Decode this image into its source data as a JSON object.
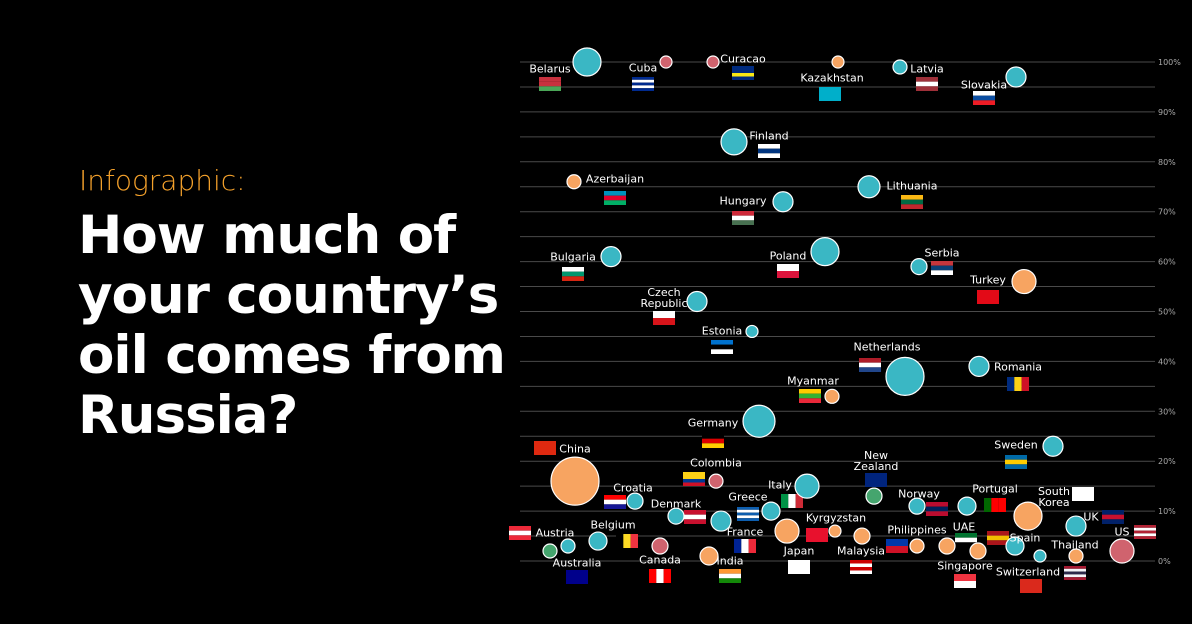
{
  "chart_data": {
    "type": "bubble",
    "kicker": "Infographic:",
    "title_lines": [
      "How much of",
      "your country’s",
      "oil comes from",
      "Russia?"
    ],
    "ylim": [
      0,
      100
    ],
    "yticks": [
      {
        "value": 0,
        "label": "0%"
      },
      {
        "value": 10,
        "label": "10%"
      },
      {
        "value": 20,
        "label": "20%"
      },
      {
        "value": 30,
        "label": "30%"
      },
      {
        "value": 40,
        "label": "40%"
      },
      {
        "value": 50,
        "label": "50%"
      },
      {
        "value": 60,
        "label": "60%"
      },
      {
        "value": 70,
        "label": "70%"
      },
      {
        "value": 80,
        "label": "80%"
      },
      {
        "value": 90,
        "label": "90%"
      },
      {
        "value": 100,
        "label": "100%"
      }
    ],
    "minor_yticks": [
      5,
      15,
      25,
      35,
      45,
      55,
      65,
      75,
      85,
      95
    ],
    "grid": true,
    "points": [
      {
        "name": "Belarus",
        "value": 100,
        "size": 14,
        "color": "#3ab7c4"
      },
      {
        "name": "Cuba",
        "value": 100,
        "size": 6,
        "color": "#d0636e"
      },
      {
        "name": "Curacao",
        "value": 100,
        "size": 6,
        "color": "#d0636e"
      },
      {
        "name": "Kazakhstan",
        "value": 100,
        "size": 6,
        "color": "#f7a461"
      },
      {
        "name": "Latvia",
        "value": 99,
        "size": 7,
        "color": "#3ab7c4"
      },
      {
        "name": "Slovakia",
        "value": 97,
        "size": 10,
        "color": "#3ab7c4"
      },
      {
        "name": "Finland",
        "value": 84,
        "size": 13,
        "color": "#3ab7c4"
      },
      {
        "name": "Azerbaijan",
        "value": 76,
        "size": 7,
        "color": "#f7a461"
      },
      {
        "name": "Lithuania",
        "value": 75,
        "size": 11,
        "color": "#3ab7c4"
      },
      {
        "name": "Hungary",
        "value": 72,
        "size": 10,
        "color": "#3ab7c4"
      },
      {
        "name": "Bulgaria",
        "value": 61,
        "size": 10,
        "color": "#3ab7c4"
      },
      {
        "name": "Poland",
        "value": 62,
        "size": 14,
        "color": "#3ab7c4"
      },
      {
        "name": "Serbia",
        "value": 59,
        "size": 8,
        "color": "#3ab7c4"
      },
      {
        "name": "Turkey",
        "value": 56,
        "size": 12,
        "color": "#f7a461"
      },
      {
        "name": "Czech Republic",
        "value": 52,
        "size": 10,
        "color": "#3ab7c4"
      },
      {
        "name": "Estonia",
        "value": 46,
        "size": 6,
        "color": "#3ab7c4"
      },
      {
        "name": "Netherlands",
        "value": 37,
        "size": 19,
        "color": "#3ab7c4"
      },
      {
        "name": "Romania",
        "value": 39,
        "size": 10,
        "color": "#3ab7c4"
      },
      {
        "name": "Myanmar",
        "value": 33,
        "size": 7,
        "color": "#f7a461"
      },
      {
        "name": "Germany",
        "value": 28,
        "size": 16,
        "color": "#3ab7c4"
      },
      {
        "name": "China",
        "value": 16,
        "size": 24,
        "color": "#f7a461"
      },
      {
        "name": "Sweden",
        "value": 23,
        "size": 10,
        "color": "#3ab7c4"
      },
      {
        "name": "Colombia",
        "value": 16,
        "size": 7,
        "color": "#d0636e"
      },
      {
        "name": "New Zealand",
        "value": 13,
        "size": 8,
        "color": "#45a56e"
      },
      {
        "name": "Croatia",
        "value": 12,
        "size": 8,
        "color": "#3ab7c4"
      },
      {
        "name": "Italy",
        "value": 15,
        "size": 12,
        "color": "#3ab7c4"
      },
      {
        "name": "Portugal",
        "value": 11,
        "size": 9,
        "color": "#3ab7c4"
      },
      {
        "name": "Norway",
        "value": 11,
        "size": 8,
        "color": "#3ab7c4"
      },
      {
        "name": "South Korea",
        "value": 9,
        "size": 14,
        "color": "#f7a461"
      },
      {
        "name": "Denmark",
        "value": 9,
        "size": 8,
        "color": "#3ab7c4"
      },
      {
        "name": "Greece",
        "value": 10,
        "size": 9,
        "color": "#3ab7c4"
      },
      {
        "name": "UK",
        "value": 7,
        "size": 10,
        "color": "#3ab7c4"
      },
      {
        "name": "US",
        "value": 2,
        "size": 12,
        "color": "#d0636e"
      },
      {
        "name": "Austria",
        "value": 3,
        "size": 7,
        "color": "#3ab7c4"
      },
      {
        "name": "Belgium",
        "value": 4,
        "size": 9,
        "color": "#3ab7c4"
      },
      {
        "name": "Australia",
        "value": 2,
        "size": 7,
        "color": "#45a56e"
      },
      {
        "name": "Canada",
        "value": 3,
        "size": 8,
        "color": "#d0636e"
      },
      {
        "name": "France",
        "value": 8,
        "size": 10,
        "color": "#3ab7c4"
      },
      {
        "name": "India",
        "value": 1,
        "size": 9,
        "color": "#f7a461"
      },
      {
        "name": "Japan",
        "value": 6,
        "size": 12,
        "color": "#f7a461"
      },
      {
        "name": "Kyrgyzstan",
        "value": 6,
        "size": 6,
        "color": "#f7a461"
      },
      {
        "name": "Malaysia",
        "value": 5,
        "size": 8,
        "color": "#f7a461"
      },
      {
        "name": "Philippines",
        "value": 3,
        "size": 7,
        "color": "#f7a461"
      },
      {
        "name": "UAE",
        "value": 3,
        "size": 8,
        "color": "#f7a461"
      },
      {
        "name": "Singapore",
        "value": 2,
        "size": 8,
        "color": "#f7a461"
      },
      {
        "name": "Spain",
        "value": 3,
        "size": 9,
        "color": "#3ab7c4"
      },
      {
        "name": "Switzerland",
        "value": 1,
        "size": 6,
        "color": "#3ab7c4"
      },
      {
        "name": "Thailand",
        "value": 1,
        "size": 7,
        "color": "#f7a461"
      }
    ]
  }
}
